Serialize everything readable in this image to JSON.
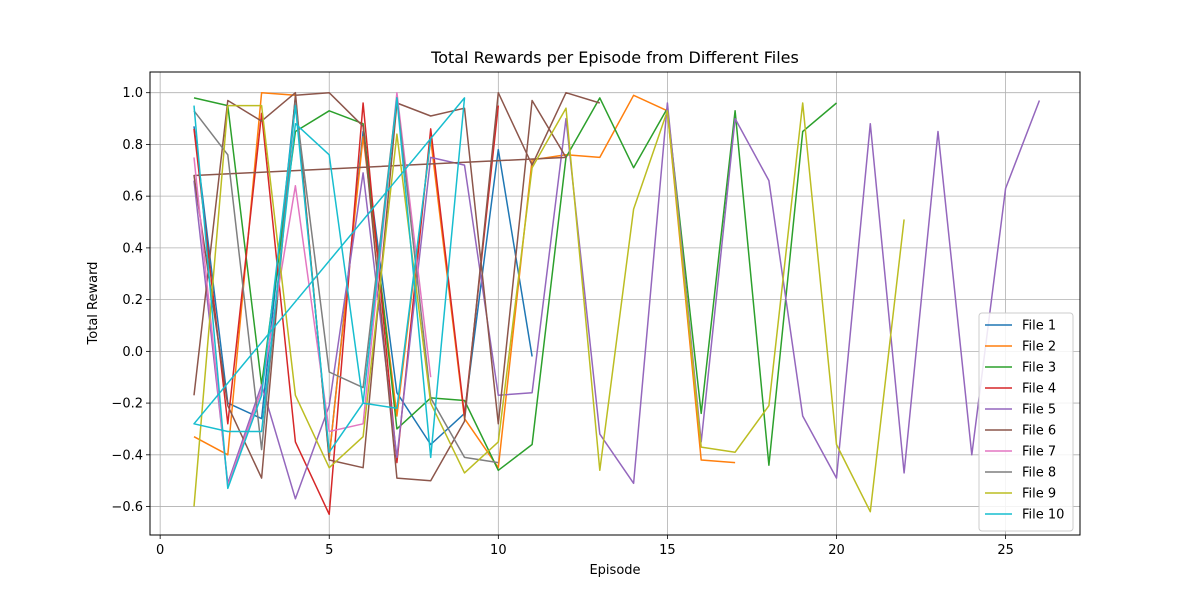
{
  "chart_data": {
    "type": "line",
    "title": "Total Rewards per Episode from Different Files",
    "xlabel": "Episode",
    "ylabel": "Total Reward",
    "xlim": [
      -0.3,
      27.2
    ],
    "ylim": [
      -0.71,
      1.08
    ],
    "xticks": [
      0,
      5,
      10,
      15,
      20,
      25
    ],
    "yticks": [
      -0.6,
      -0.4,
      -0.2,
      0.0,
      0.2,
      0.4,
      0.6,
      0.8,
      1.0
    ],
    "grid": true,
    "legend_position": "lower right",
    "series": [
      {
        "name": "File 1",
        "color": "#1f77b4",
        "x": [
          1,
          2,
          3,
          4,
          5,
          6,
          7,
          8,
          9,
          10,
          11
        ],
        "y": [
          0.87,
          -0.2,
          -0.26,
          0.98,
          -0.41,
          0.85,
          -0.16,
          -0.36,
          -0.24,
          0.78,
          -0.02
        ]
      },
      {
        "name": "File 2",
        "color": "#ff7f0e",
        "x": [
          1,
          2,
          3,
          4,
          5,
          6,
          7,
          8,
          9,
          10,
          11,
          12,
          13,
          14,
          15,
          16,
          17
        ],
        "y": [
          -0.33,
          -0.4,
          1.0,
          0.99,
          -0.41,
          0.83,
          -0.25,
          0.82,
          -0.26,
          -0.45,
          0.74,
          0.76,
          0.75,
          0.99,
          0.93,
          -0.42,
          -0.43
        ]
      },
      {
        "name": "File 3",
        "color": "#2ca02c",
        "x": [
          1,
          2,
          3,
          4,
          5,
          6,
          7,
          8,
          9,
          10,
          11,
          12,
          13,
          14,
          15,
          16,
          17,
          18,
          19,
          20
        ],
        "y": [
          0.98,
          0.95,
          -0.13,
          0.85,
          0.93,
          0.88,
          -0.3,
          -0.18,
          -0.19,
          -0.46,
          -0.36,
          0.75,
          0.98,
          0.71,
          0.94,
          -0.24,
          0.93,
          -0.44,
          0.85,
          0.96
        ]
      },
      {
        "name": "File 4",
        "color": "#d62728",
        "x": [
          1,
          2,
          3,
          4,
          5,
          6,
          7,
          8,
          9,
          10
        ],
        "y": [
          0.86,
          -0.28,
          0.92,
          -0.35,
          -0.63,
          0.96,
          -0.43,
          0.86,
          -0.25,
          0.95
        ]
      },
      {
        "name": "File 5",
        "color": "#9467bd",
        "x": [
          1,
          2,
          3,
          4,
          5,
          6,
          7,
          8,
          9,
          10,
          11,
          12,
          13,
          14,
          15,
          16,
          17,
          18,
          19,
          20,
          21,
          22,
          23,
          24,
          25,
          26
        ],
        "y": [
          0.66,
          -0.51,
          -0.13,
          -0.57,
          -0.21,
          0.69,
          -0.41,
          0.75,
          0.72,
          -0.17,
          -0.16,
          0.9,
          -0.32,
          -0.51,
          0.96,
          -0.35,
          0.9,
          0.66,
          -0.25,
          -0.49,
          0.88,
          -0.47,
          0.85,
          -0.4,
          0.63,
          0.97
        ]
      },
      {
        "name": "File 6",
        "color": "#8c564b",
        "x": [
          1,
          2,
          3,
          4,
          5,
          6,
          7,
          8,
          9,
          10,
          11,
          12,
          1,
          2,
          3,
          4,
          5,
          6,
          7,
          8,
          9,
          10,
          11,
          12,
          13
        ],
        "y": [
          -0.17,
          0.97,
          0.89,
          1.0,
          -0.42,
          -0.45,
          0.96,
          0.91,
          0.94,
          -0.28,
          0.97,
          0.75,
          0.68,
          -0.21,
          -0.49,
          0.99,
          1.0,
          0.87,
          -0.49,
          -0.5,
          -0.27,
          1.0,
          0.72,
          1.0,
          0.96
        ]
      },
      {
        "name": "File 7",
        "color": "#e377c2",
        "x": [
          1,
          2,
          3,
          4,
          5,
          6,
          7,
          8
        ],
        "y": [
          0.75,
          -0.52,
          -0.15,
          0.64,
          -0.31,
          -0.28,
          1.0,
          -0.1
        ]
      },
      {
        "name": "File 8",
        "color": "#7f7f7f",
        "x": [
          1,
          2,
          3,
          4,
          5,
          6,
          7,
          8,
          9,
          10
        ],
        "y": [
          0.93,
          0.76,
          -0.38,
          0.96,
          -0.08,
          -0.14,
          0.98,
          -0.18,
          -0.41,
          -0.43
        ]
      },
      {
        "name": "File 9",
        "color": "#bcbd22",
        "x": [
          1,
          2,
          3,
          4,
          5,
          6,
          7,
          8,
          9,
          10,
          11,
          12,
          13,
          14,
          15,
          16,
          17,
          18,
          19,
          20,
          21,
          22
        ],
        "y": [
          -0.6,
          0.95,
          0.95,
          -0.17,
          -0.45,
          -0.33,
          0.84,
          -0.2,
          -0.47,
          -0.35,
          0.71,
          0.94,
          -0.46,
          0.55,
          0.93,
          -0.37,
          -0.39,
          -0.21,
          0.96,
          -0.36,
          -0.62,
          0.51
        ]
      },
      {
        "name": "File 10",
        "color": "#17becf",
        "x": [
          1,
          2,
          3,
          4,
          5,
          6,
          7,
          8,
          9,
          1,
          2,
          3,
          4,
          5,
          6,
          7,
          8
        ],
        "y": [
          0.95,
          -0.53,
          -0.17,
          0.95,
          -0.39,
          -0.2,
          0.98,
          -0.41,
          0.98,
          -0.28,
          -0.31,
          -0.31,
          0.88,
          0.76,
          -0.2,
          -0.22,
          0.82
        ]
      }
    ]
  }
}
